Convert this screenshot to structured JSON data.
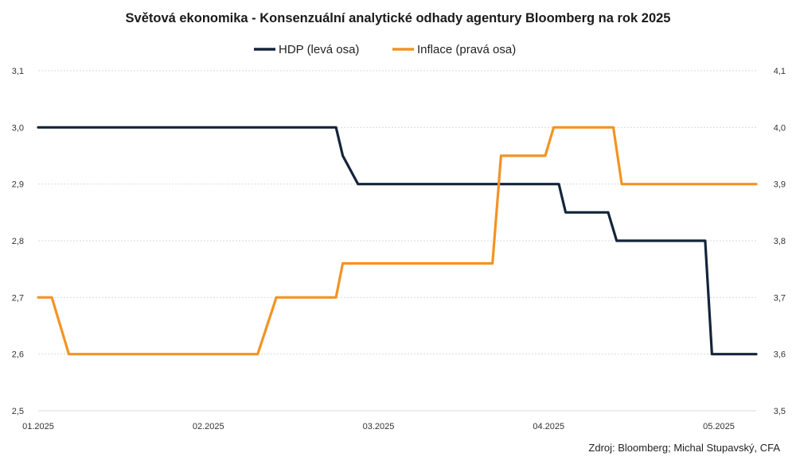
{
  "chart_data": {
    "type": "line",
    "title": "Světová ekonomika - Konsenzuální analytické odhady agentury Bloomberg na rok 2025",
    "source": "Zdroj: Bloomberg; Michal Stupavský, CFA",
    "x_ticks": [
      "01.2025",
      "02.2025",
      "03.2025",
      "04.2025",
      "05.2025"
    ],
    "y_left": {
      "range": [
        2.5,
        3.1
      ],
      "ticks": [
        "2,5",
        "2,6",
        "2,7",
        "2,8",
        "2,9",
        "3,0",
        "3,1"
      ]
    },
    "y_right": {
      "range": [
        3.5,
        4.1
      ],
      "ticks": [
        "3,5",
        "3,6",
        "3,7",
        "3,8",
        "3,9",
        "4,0",
        "4,1"
      ]
    },
    "grid": true,
    "legend_position": "top-center",
    "x_unit": "months since 01.2025",
    "series": [
      {
        "name": "HDP (levá osa)",
        "axis": "left",
        "color": "#14253a",
        "points": [
          [
            0.0,
            3.0
          ],
          [
            1.75,
            3.0
          ],
          [
            1.79,
            2.95
          ],
          [
            1.88,
            2.9
          ],
          [
            3.06,
            2.9
          ],
          [
            3.1,
            2.85
          ],
          [
            3.35,
            2.85
          ],
          [
            3.4,
            2.8
          ],
          [
            3.92,
            2.8
          ],
          [
            3.96,
            2.6
          ],
          [
            4.22,
            2.6
          ]
        ]
      },
      {
        "name": "Inflace (pravá osa)",
        "axis": "right",
        "color": "#f39323",
        "points": [
          [
            0.0,
            3.7
          ],
          [
            0.08,
            3.7
          ],
          [
            0.18,
            3.6
          ],
          [
            1.29,
            3.6
          ],
          [
            1.4,
            3.7
          ],
          [
            1.75,
            3.7
          ],
          [
            1.79,
            3.76
          ],
          [
            2.67,
            3.76
          ],
          [
            2.72,
            3.95
          ],
          [
            2.98,
            3.95
          ],
          [
            3.03,
            4.0
          ],
          [
            3.38,
            4.0
          ],
          [
            3.43,
            3.9
          ],
          [
            4.22,
            3.9
          ]
        ]
      }
    ]
  }
}
